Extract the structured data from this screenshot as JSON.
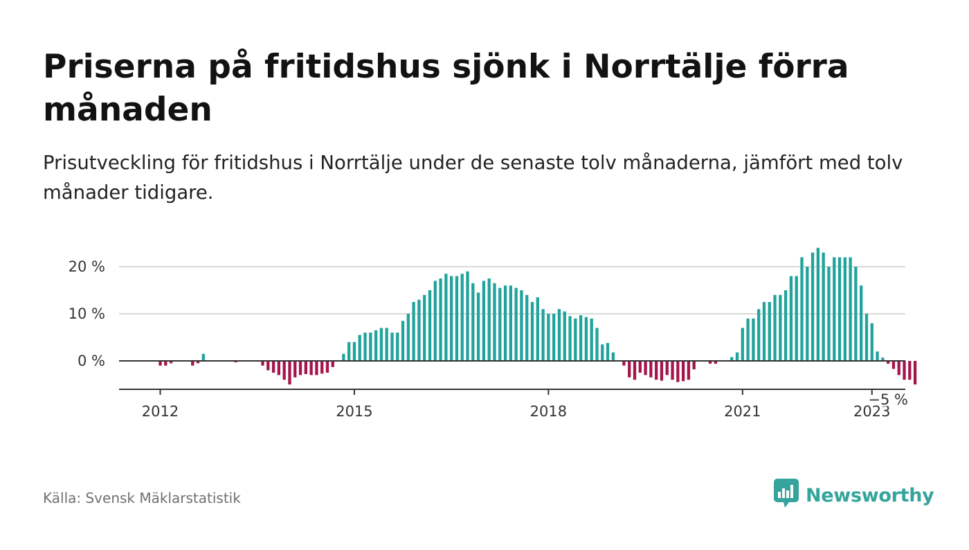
{
  "title": "Priserna på fritidshus sjönk i Norrtälje förra månaden",
  "subtitle": "Prisutveckling för fritidshus i Norrtälje under de senaste tolv månaderna, jämfört med tolv månader tidigare.",
  "source": "Källa: Svensk Mäklarstatistik",
  "brand": {
    "name": "Newsworthy",
    "color": "#34a49c",
    "icon": "newsworthy-logo-icon"
  },
  "chart_data": {
    "type": "bar",
    "title": "",
    "xlabel": "",
    "ylabel": "",
    "x_start": "2011-09",
    "x_end": "2023-10",
    "ylim": [
      -6,
      24
    ],
    "yticks": [
      {
        "value": 0,
        "label": "0 %"
      },
      {
        "value": 10,
        "label": "10 %"
      },
      {
        "value": 20,
        "label": "20 %"
      }
    ],
    "xticks": [
      {
        "date": "2012-01",
        "label": "2012"
      },
      {
        "date": "2015-01",
        "label": "2015"
      },
      {
        "date": "2018-01",
        "label": "2018"
      },
      {
        "date": "2021-01",
        "label": "2021"
      },
      {
        "date": "2023-01",
        "label": "2023"
      }
    ],
    "grid": true,
    "colors": {
      "positive": "#20a39b",
      "negative": "#a5154a",
      "grid": "#d9d9d9",
      "axis": "#333333"
    },
    "annotation": {
      "date": "2023-04",
      "value": -5,
      "label": "−5 %"
    },
    "start_date": "2011-09",
    "values": [
      0,
      0,
      0,
      0,
      -1,
      -1,
      -0.5,
      0,
      0,
      0,
      -1,
      -0.5,
      1.5,
      0,
      0,
      0,
      0,
      0,
      -0.3,
      0,
      0,
      0,
      0,
      -1,
      -2,
      -2.5,
      -3,
      -4,
      -5,
      -3.5,
      -3,
      -2.8,
      -3,
      -3,
      -2.7,
      -2.5,
      -1.3,
      0,
      1.5,
      4,
      4,
      5.5,
      6,
      6,
      6.5,
      7,
      7,
      6,
      6,
      8.5,
      10,
      12.5,
      13,
      14,
      15,
      17,
      17.5,
      18.5,
      18,
      18,
      18.5,
      19,
      16.5,
      14.5,
      17,
      17.5,
      16.5,
      15.5,
      16,
      16,
      15.5,
      15,
      14,
      12.5,
      13.5,
      11,
      10,
      10,
      11,
      10.5,
      9.5,
      9,
      9.7,
      9.3,
      9,
      7,
      3.5,
      3.8,
      1.8,
      0,
      -1,
      -3.5,
      -4,
      -2.5,
      -3,
      -3.5,
      -4,
      -4.2,
      -3,
      -4,
      -4.5,
      -4.3,
      -4,
      -1.8,
      0,
      0,
      -0.6,
      -0.6,
      0,
      0,
      0.8,
      1.8,
      7,
      9,
      9,
      11,
      12.5,
      12.5,
      14,
      14,
      15,
      18,
      18,
      22,
      20,
      23,
      24,
      23,
      20,
      22,
      22,
      22,
      22,
      20,
      16,
      10,
      8,
      2,
      0.7,
      -0.6,
      -1.7,
      -3,
      -4,
      -4,
      -5
    ]
  }
}
